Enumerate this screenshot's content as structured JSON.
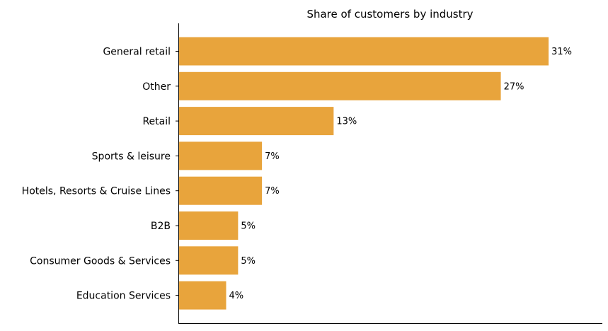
{
  "chart_data": {
    "type": "bar",
    "orientation": "horizontal",
    "title": "Share of customers by industry",
    "xlabel": "",
    "ylabel": "",
    "categories": [
      "General retail",
      "Other",
      "Retail",
      "Sports & leisure",
      "Hotels, Resorts & Cruise Lines",
      "B2B",
      "Consumer Goods & Services",
      "Education Services"
    ],
    "values": [
      31,
      27,
      13,
      7,
      7,
      5,
      5,
      4
    ],
    "value_labels": [
      "31%",
      "27%",
      "13%",
      "7%",
      "7%",
      "5%",
      "5%",
      "4%"
    ],
    "unit": "%",
    "xlim": [
      0,
      35.5
    ],
    "bar_color": "#E8A43C",
    "grid": false,
    "legend": "none",
    "x_ticks_visible": false
  }
}
